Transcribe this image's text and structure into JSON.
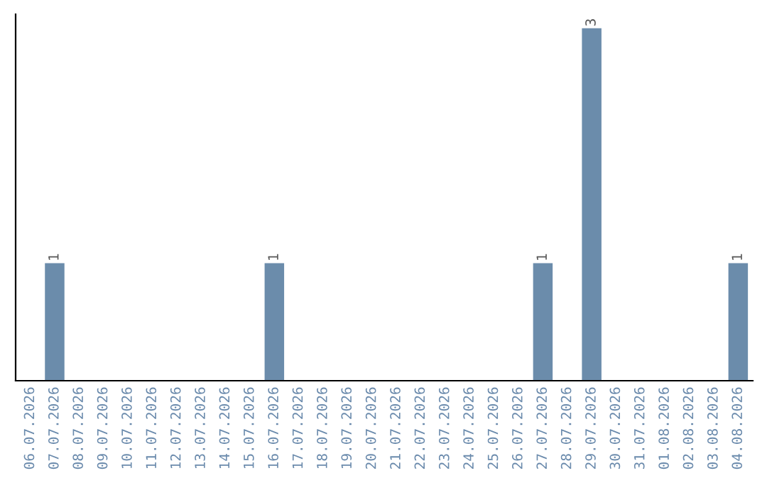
{
  "chart_data": {
    "type": "bar",
    "categories": [
      "06.07.2026",
      "07.07.2026",
      "08.07.2026",
      "09.07.2026",
      "10.07.2026",
      "11.07.2026",
      "12.07.2026",
      "13.07.2026",
      "14.07.2026",
      "15.07.2026",
      "16.07.2026",
      "17.07.2026",
      "18.07.2026",
      "19.07.2026",
      "20.07.2026",
      "21.07.2026",
      "22.07.2026",
      "23.07.2026",
      "24.07.2026",
      "25.07.2026",
      "26.07.2026",
      "27.07.2026",
      "28.07.2026",
      "29.07.2026",
      "30.07.2026",
      "31.07.2026",
      "01.08.2026",
      "02.08.2026",
      "03.08.2026",
      "04.08.2026"
    ],
    "values": [
      0,
      1,
      0,
      0,
      0,
      0,
      0,
      0,
      0,
      0,
      1,
      0,
      0,
      0,
      0,
      0,
      0,
      0,
      0,
      0,
      0,
      1,
      0,
      3,
      0,
      0,
      0,
      0,
      0,
      1
    ],
    "value_labels": [
      null,
      "1",
      null,
      null,
      null,
      null,
      null,
      null,
      null,
      null,
      "1",
      null,
      null,
      null,
      null,
      null,
      null,
      null,
      null,
      null,
      null,
      "1",
      null,
      "3",
      null,
      null,
      null,
      null,
      null,
      "1"
    ],
    "color": "#6b8cab",
    "tick_labels": "x",
    "grid": false,
    "legend": false
  }
}
